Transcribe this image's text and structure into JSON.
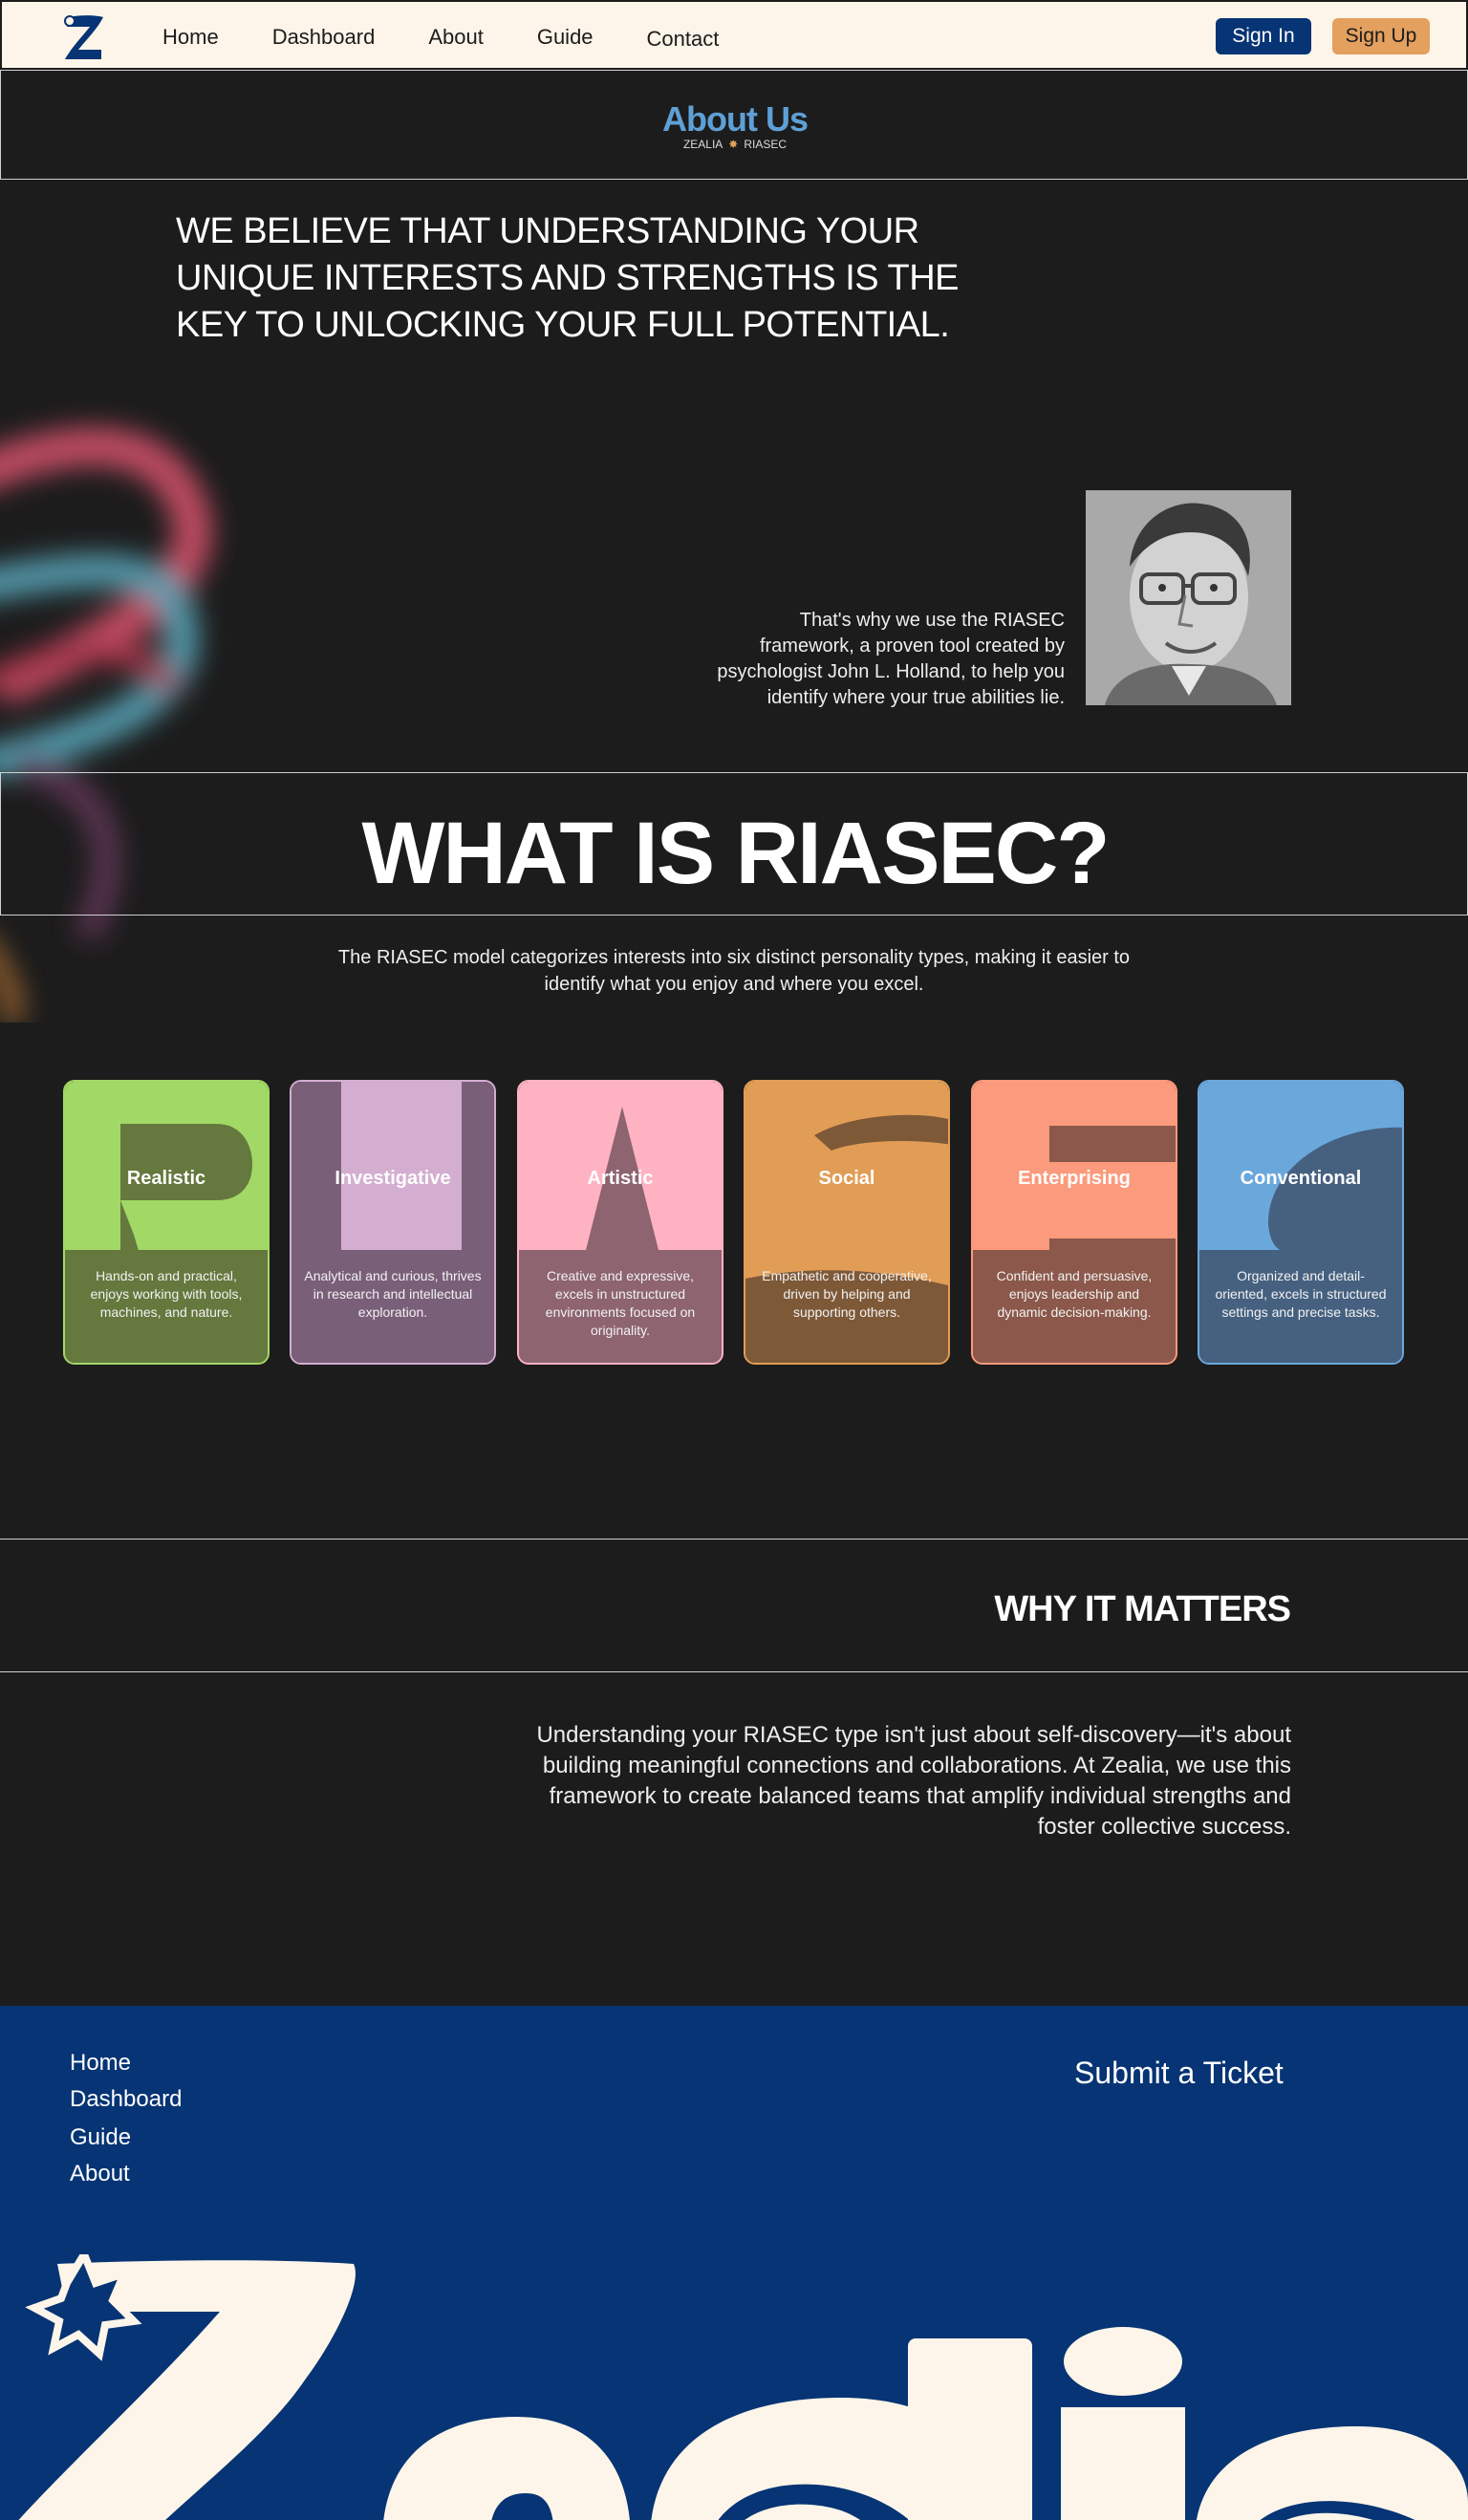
{
  "nav": {
    "logo_icon": "zealia-z-logo-icon",
    "links": [
      "Home",
      "Dashboard",
      "About",
      "Guide",
      "Contact"
    ],
    "sign_in": "Sign In",
    "sign_up": "Sign Up"
  },
  "about": {
    "title": "About Us",
    "sub_left": "ZEALIA",
    "sub_right": "RIASEC"
  },
  "hero": {
    "belief": "WE BELIEVE THAT UNDERSTANDING YOUR UNIQUE INTERESTS AND STRENGTHS IS THE KEY TO UNLOCKING YOUR FULL POTENTIAL.",
    "intro": "That's why we use the RIASEC framework, a proven tool created by psychologist John L. Holland, to help you identify where your true abilities lie."
  },
  "riasec": {
    "title": "WHAT IS RIASEC?",
    "description": "The RIASEC model categorizes interests into six distinct personality types, making it easier to identify what you enjoy and where you excel.",
    "cards": [
      {
        "name": "Realistic",
        "desc": "Hands-on and practical, enjoys working with tools, machines, and nature.",
        "color": "#a2d866",
        "lower": "#65783e",
        "border": "#a2d866"
      },
      {
        "name": "Investigative",
        "desc": "Analytical and curious, thrives in research and intellectual exploration.",
        "color": "#d4aed1",
        "lower": "#7a5f79",
        "border": "#d4aed1"
      },
      {
        "name": "Artistic",
        "desc": "Creative and expressive, excels in unstructured environments focused on originality.",
        "color": "#ffb3c2",
        "lower": "#8d6470",
        "border": "#ffb3c2"
      },
      {
        "name": "Social",
        "desc": "Empathetic and cooperative, driven by helping and supporting others.",
        "color": "#e19d56",
        "lower": "#7e5938",
        "border": "#e19d56"
      },
      {
        "name": "Enterprising",
        "desc": "Confident and persuasive, enjoys leadership and dynamic decision-making.",
        "color": "#fb9a7c",
        "lower": "#8b584b",
        "border": "#fb9a7c"
      },
      {
        "name": "Conventional",
        "desc": "Organized and detail-oriented, excels in structured settings and precise tasks.",
        "color": "#6aa8dc",
        "lower": "#466180",
        "border": "#6aa8dc"
      }
    ]
  },
  "why": {
    "title": "WHY IT MATTERS",
    "text": "Understanding your RIASEC type isn't just about self-discovery—it's about building meaningful connections and collaborations. At Zealia, we use this framework to create balanced teams that amplify individual strengths and foster collective success."
  },
  "footer": {
    "links": [
      "Home",
      "Dashboard",
      "Guide",
      "About"
    ],
    "ticket": "Submit a Ticket",
    "brand": "Zealia"
  },
  "colors": {
    "navy": "#063474",
    "cream": "#fdf5e9",
    "orange": "#e3a05e",
    "dark": "#1c1c1c",
    "about_blue": "#5ea0d6"
  }
}
